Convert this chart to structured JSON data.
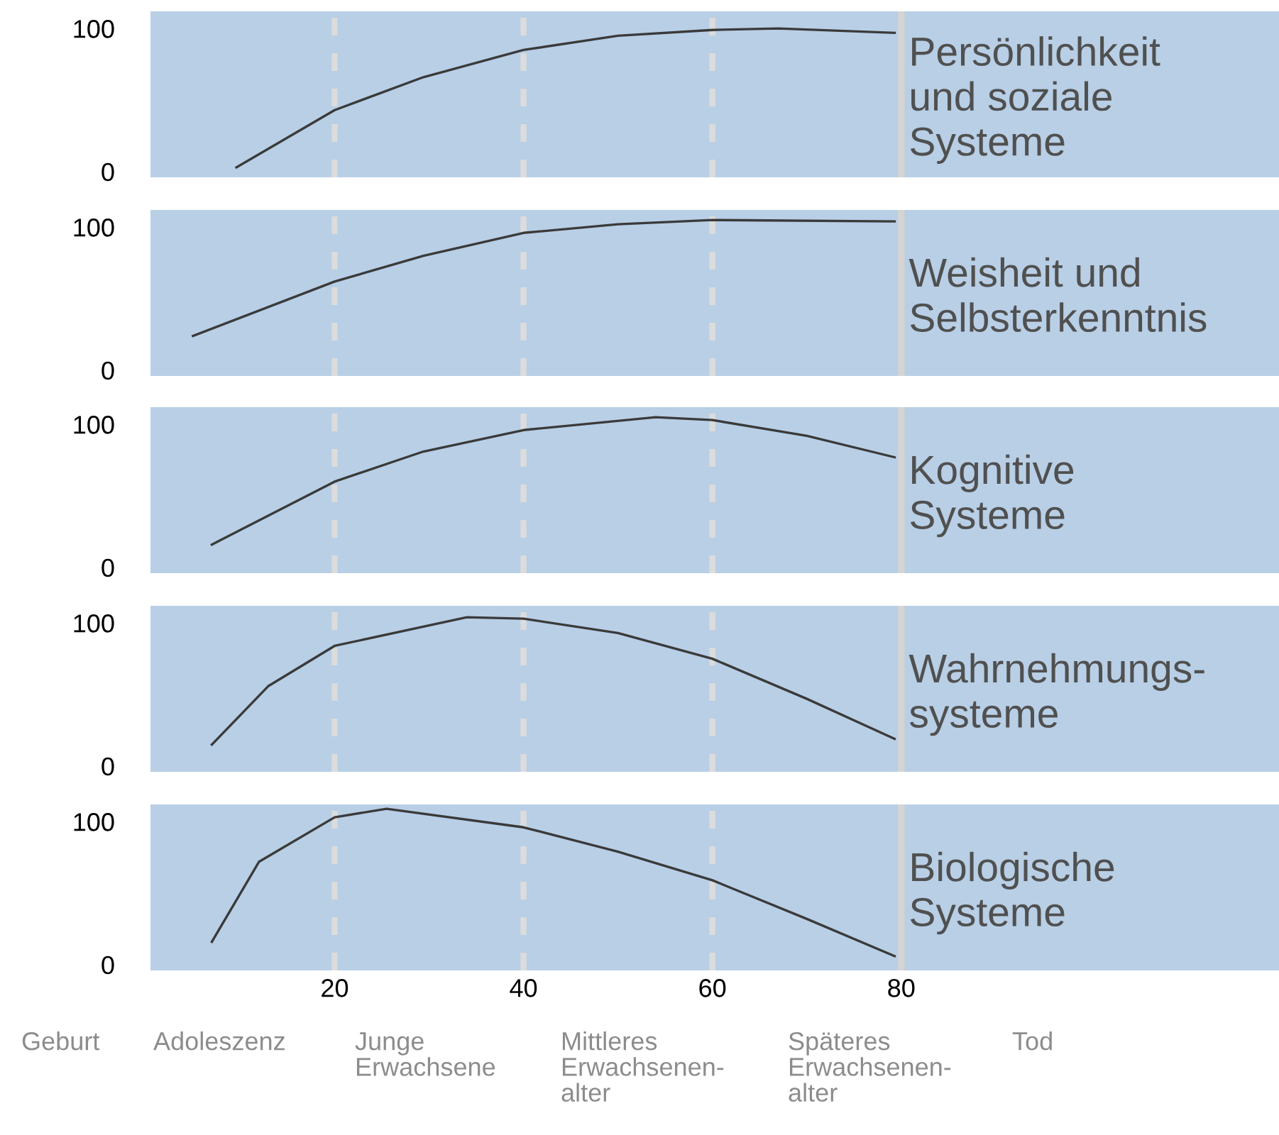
{
  "chart_data": [
    {
      "type": "line",
      "title": "Persönlichkeit\nund soziale\nSysteme",
      "tick_labels": "y",
      "xlim": [
        0.5,
        120
      ],
      "ylim": [
        -4,
        112
      ],
      "yticks": [
        0,
        100
      ],
      "grid": false,
      "legend": false,
      "series": [
        {
          "color": "#3a3a3a",
          "x": [
            9.6,
            20,
            29.4,
            40,
            50,
            60,
            67,
            79.3
          ],
          "values": [
            3,
            43,
            66,
            85,
            95,
            99,
            100,
            97
          ]
        }
      ],
      "ref_lines": [
        {
          "axis": "x",
          "value": 20,
          "color": "#dcdcdc",
          "line_style": "dashed"
        },
        {
          "axis": "x",
          "value": 40,
          "color": "#dcdcdc",
          "line_style": "dashed"
        },
        {
          "axis": "x",
          "value": 60,
          "color": "#dcdcdc",
          "line_style": "dashed"
        },
        {
          "axis": "x",
          "value": 80,
          "color": "#d4d4d4",
          "line_style": "solid"
        }
      ]
    },
    {
      "type": "line",
      "title": "Weisheit und\nSelbsterkenntnis",
      "tick_labels": "y",
      "xlim": [
        0.5,
        120
      ],
      "ylim": [
        -4,
        112
      ],
      "yticks": [
        0,
        100
      ],
      "grid": false,
      "legend": false,
      "series": [
        {
          "color": "#3a3a3a",
          "x": [
            5,
            20,
            29.4,
            40,
            50,
            60,
            79.3
          ],
          "values": [
            24,
            62,
            80,
            96,
            102,
            105,
            104
          ]
        }
      ],
      "ref_lines": [
        {
          "axis": "x",
          "value": 20,
          "color": "#dcdcdc",
          "line_style": "dashed"
        },
        {
          "axis": "x",
          "value": 40,
          "color": "#dcdcdc",
          "line_style": "dashed"
        },
        {
          "axis": "x",
          "value": 60,
          "color": "#dcdcdc",
          "line_style": "dashed"
        },
        {
          "axis": "x",
          "value": 80,
          "color": "#d4d4d4",
          "line_style": "solid"
        }
      ]
    },
    {
      "type": "line",
      "title": "Kognitive\nSysteme",
      "tick_labels": "y",
      "xlim": [
        0.5,
        120
      ],
      "ylim": [
        -4,
        112
      ],
      "yticks": [
        0,
        100
      ],
      "grid": false,
      "legend": false,
      "series": [
        {
          "color": "#3a3a3a",
          "x": [
            7,
            20,
            29.4,
            40,
            54,
            60,
            70,
            79.3
          ],
          "values": [
            16,
            60,
            81,
            96,
            105,
            103,
            92,
            77
          ]
        }
      ],
      "ref_lines": [
        {
          "axis": "x",
          "value": 20,
          "color": "#dcdcdc",
          "line_style": "dashed"
        },
        {
          "axis": "x",
          "value": 40,
          "color": "#dcdcdc",
          "line_style": "dashed"
        },
        {
          "axis": "x",
          "value": 60,
          "color": "#dcdcdc",
          "line_style": "dashed"
        },
        {
          "axis": "x",
          "value": 80,
          "color": "#d4d4d4",
          "line_style": "solid"
        }
      ]
    },
    {
      "type": "line",
      "title": "Wahrnehmungs-\nsysteme",
      "tick_labels": "y",
      "xlim": [
        0.5,
        120
      ],
      "ylim": [
        -4,
        112
      ],
      "yticks": [
        0,
        100
      ],
      "grid": false,
      "legend": false,
      "series": [
        {
          "color": "#3a3a3a",
          "x": [
            7,
            13,
            20,
            34,
            40,
            50,
            60,
            70,
            79.3
          ],
          "values": [
            15,
            56,
            84,
            104,
            103,
            93,
            75,
            47,
            19
          ]
        }
      ],
      "ref_lines": [
        {
          "axis": "x",
          "value": 20,
          "color": "#dcdcdc",
          "line_style": "dashed"
        },
        {
          "axis": "x",
          "value": 40,
          "color": "#dcdcdc",
          "line_style": "dashed"
        },
        {
          "axis": "x",
          "value": 60,
          "color": "#dcdcdc",
          "line_style": "dashed"
        },
        {
          "axis": "x",
          "value": 80,
          "color": "#d4d4d4",
          "line_style": "solid"
        }
      ]
    },
    {
      "type": "line",
      "title": "Biologische\nSysteme",
      "xlim": [
        0.5,
        120
      ],
      "ylim": [
        -4,
        112
      ],
      "xticks": [
        20,
        40,
        60,
        80
      ],
      "yticks": [
        0,
        100
      ],
      "grid": false,
      "legend": false,
      "series": [
        {
          "color": "#3a3a3a",
          "x": [
            7,
            12,
            20,
            25.5,
            40,
            50,
            60,
            70,
            79.3
          ],
          "values": [
            16,
            72,
            103,
            109,
            96,
            79,
            59,
            32,
            6
          ]
        }
      ],
      "ref_lines": [
        {
          "axis": "x",
          "value": 20,
          "color": "#dcdcdc",
          "line_style": "dashed"
        },
        {
          "axis": "x",
          "value": 40,
          "color": "#dcdcdc",
          "line_style": "dashed"
        },
        {
          "axis": "x",
          "value": 60,
          "color": "#dcdcdc",
          "line_style": "dashed"
        },
        {
          "axis": "x",
          "value": 80,
          "color": "#d4d4d4",
          "line_style": "solid"
        }
      ],
      "annotations": [
        "Geburt",
        "Adoleszenz",
        "Junge\nErwachsene",
        "Mittleres\nErwachsenen-\nalter",
        "Späteres\nErwachsenen-\nalter",
        "Tod"
      ]
    }
  ]
}
